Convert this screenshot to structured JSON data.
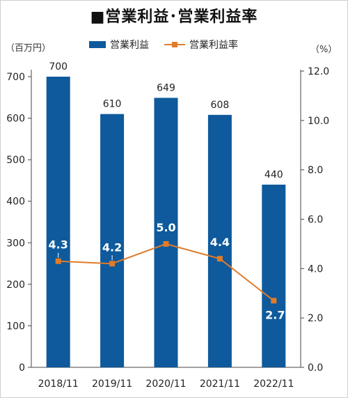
{
  "title": "■営業利益･営業利益率",
  "left_unit": "（百万円）",
  "right_unit": "（%）",
  "legend": [
    {
      "label": "営業利益",
      "kind": "bar",
      "color": "#0e5a9c"
    },
    {
      "label": "営業利益率",
      "kind": "line",
      "color": "#e07b2a"
    }
  ],
  "chart_data": {
    "type": "bar",
    "categories": [
      "2018/11",
      "2019/11",
      "2020/11",
      "2021/11",
      "2022/11"
    ],
    "series": [
      {
        "name": "営業利益",
        "type": "bar",
        "axis": "left",
        "values": [
          700,
          610,
          649,
          608,
          440
        ],
        "labels": [
          "700",
          "610",
          "649",
          "608",
          "440"
        ],
        "color": "#0e5a9c"
      },
      {
        "name": "営業利益率",
        "type": "line",
        "axis": "right",
        "values": [
          4.3,
          4.2,
          5.0,
          4.4,
          2.7
        ],
        "labels": [
          "4.3",
          "4.2",
          "5.0",
          "4.4",
          "2.7"
        ],
        "color": "#e07b2a"
      }
    ],
    "y_left": {
      "min": 0,
      "max": 700,
      "ticks": [
        "0",
        "100",
        "200",
        "300",
        "400",
        "500",
        "600",
        "700"
      ]
    },
    "y_right": {
      "min": 0,
      "max": 12,
      "ticks": [
        "0.0",
        "2.0",
        "4.0",
        "6.0",
        "8.0",
        "10.0",
        "12.0"
      ]
    },
    "grid": false,
    "legend_position": "top"
  }
}
